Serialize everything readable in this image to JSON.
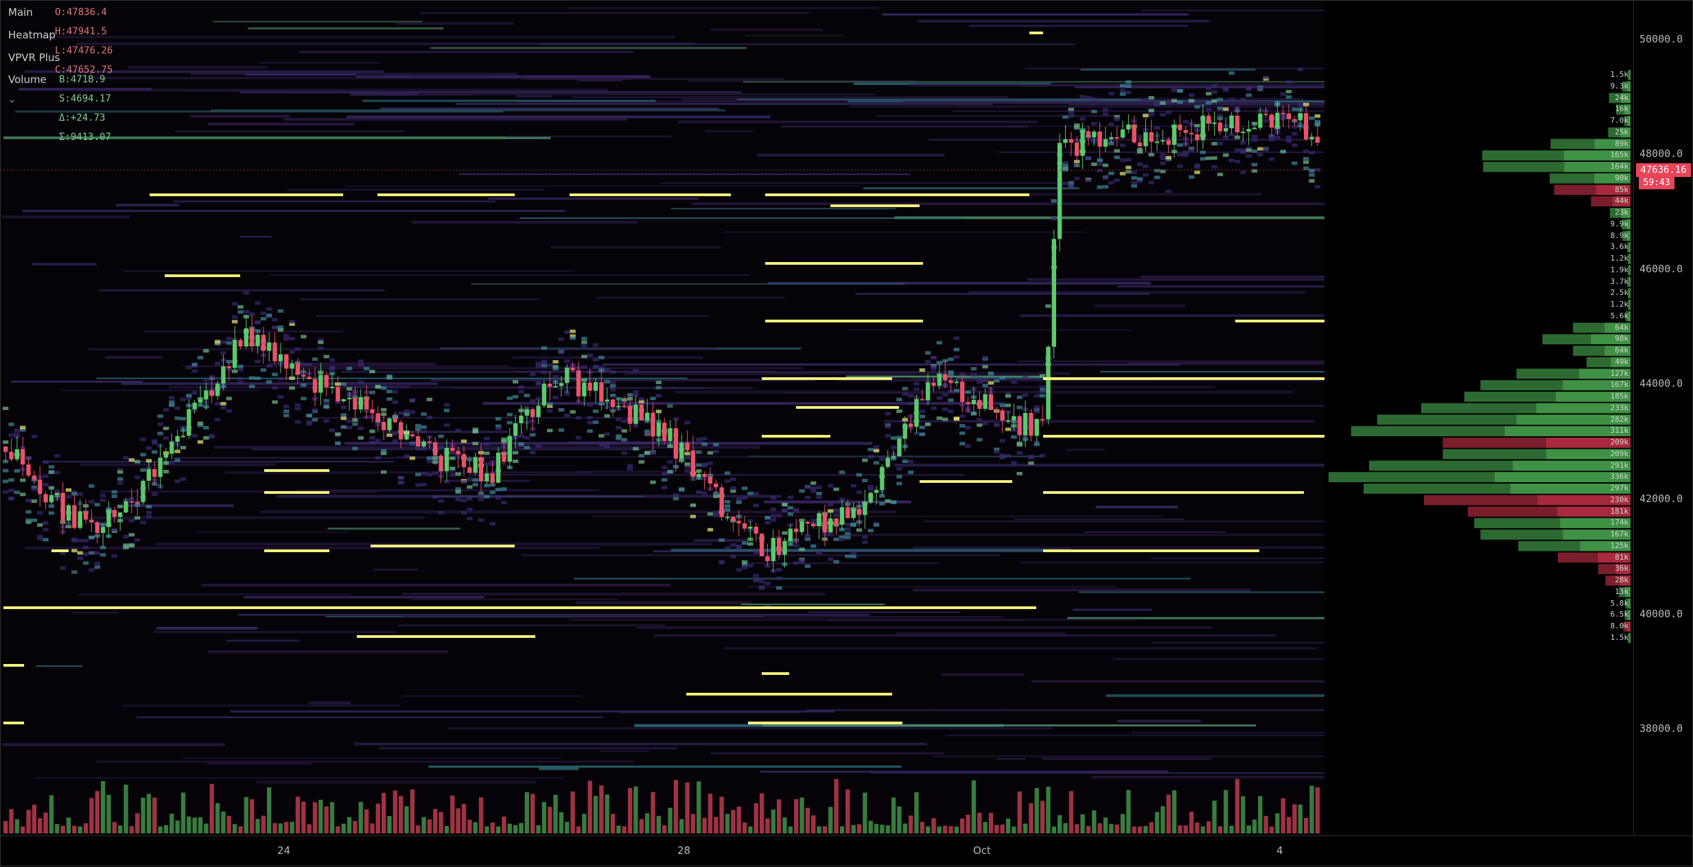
{
  "legend": {
    "main_label": "Main",
    "ohlc": "O:47836.4  H:47941.5  L:47476.26  C:47652.75",
    "heatmap_label": "Heatmap",
    "vpvr_label": "VPVR Plus",
    "volume_label": "Volume",
    "volume_values": "B:4718.9  S:4694.17  Δ:+24.73  Σ:9413.07"
  },
  "price_axis": [
    "50000.0",
    "48000.0",
    "46000.0",
    "44000.0",
    "42000.0",
    "40000.0",
    "38000.0"
  ],
  "current_price": "47636.16",
  "countdown": "59:43",
  "time_axis": [
    "24",
    "28",
    "Oct",
    "4"
  ],
  "vpvr": {
    "labels": [
      "1.5k",
      "9.3k",
      "24k",
      "16k",
      "7.0k",
      "25k",
      "89k",
      "165k",
      "164k",
      "90k",
      "85k",
      "44k",
      "23k",
      "9.9k",
      "8.9k",
      "3.6k",
      "1.2k",
      "1.9k",
      "3.7k",
      "2.5k",
      "1.2k",
      "5.6k",
      "64k",
      "98k",
      "64k",
      "49k",
      "127k",
      "167k",
      "185k",
      "233k",
      "282k",
      "311k",
      "209k",
      "209k",
      "291k",
      "336k",
      "297k",
      "230k",
      "181k",
      "174k",
      "167k",
      "125k",
      "81k",
      "36k",
      "28k",
      "13k",
      "5.8k",
      "6.5k",
      "8.0k",
      "1.5k"
    ],
    "values": [
      1.5,
      9.3,
      24,
      16,
      7.0,
      25,
      89,
      165,
      164,
      90,
      85,
      44,
      23,
      9.9,
      8.9,
      3.6,
      1.2,
      1.9,
      3.7,
      2.5,
      1.2,
      5.6,
      64,
      98,
      64,
      49,
      127,
      167,
      185,
      233,
      282,
      311,
      209,
      209,
      291,
      336,
      297,
      230,
      181,
      174,
      167,
      125,
      81,
      36,
      28,
      13,
      5.8,
      6.5,
      8.0,
      1.5
    ],
    "red_rows": [
      10,
      11,
      32,
      37,
      38,
      42,
      43,
      44,
      48
    ]
  },
  "colors": {
    "up": "#4caf50",
    "down": "#e8445a",
    "liquidity_hot": "#f5f27a",
    "background": "#000000"
  }
}
